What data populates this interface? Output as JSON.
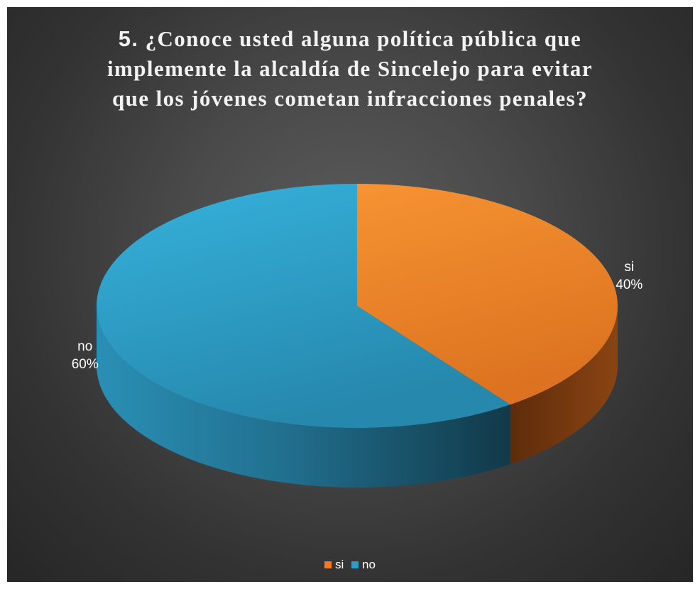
{
  "chart_data": {
    "type": "pie",
    "title_number": "5.",
    "title": "¿Conoce usted alguna política pública que implemente la alcaldía de Sincelejo para evitar que los jóvenes cometan infracciones penales?",
    "title_lines": [
      "¿Conoce usted alguna política pública que",
      "implemente la alcaldía de Sincelejo para evitar",
      "que los jóvenes cometan infracciones penales?"
    ],
    "categories": [
      "si",
      "no"
    ],
    "values": [
      40,
      60
    ],
    "value_labels": [
      "40%",
      "60%"
    ],
    "colors": [
      "#ee7d22",
      "#2d9dc4"
    ],
    "legend": "bottom",
    "style": "3d-pie"
  }
}
